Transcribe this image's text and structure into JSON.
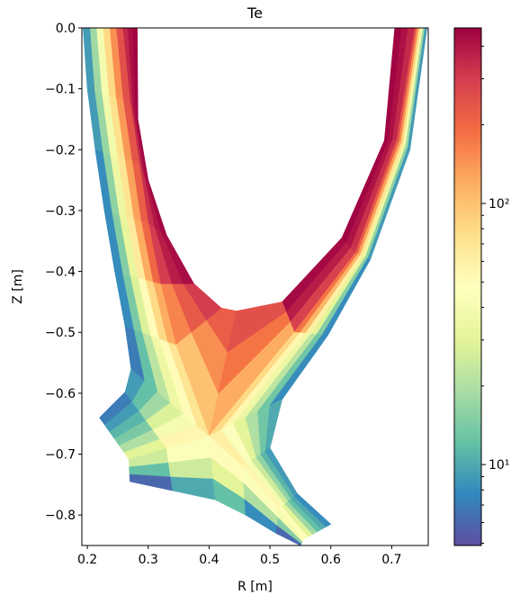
{
  "chart_data": {
    "type": "mesh",
    "title": "Te",
    "xlabel": "R [m]",
    "ylabel": "Z [m]",
    "xlim": [
      0.191,
      0.76
    ],
    "ylim": [
      -0.85,
      0.0
    ],
    "xticks": [
      0.2,
      0.3,
      0.4,
      0.5,
      0.6,
      0.7
    ],
    "yticks": [
      {
        "value": 0.0,
        "label": "0.0"
      },
      {
        "value": -0.1,
        "label": "−0.1"
      },
      {
        "value": -0.2,
        "label": "−0.2"
      },
      {
        "value": -0.3,
        "label": "−0.3"
      },
      {
        "value": -0.4,
        "label": "−0.4"
      },
      {
        "value": -0.5,
        "label": "−0.5"
      },
      {
        "value": -0.6,
        "label": "−0.6"
      },
      {
        "value": -0.7,
        "label": "−0.7"
      },
      {
        "value": -0.8,
        "label": "−0.8"
      }
    ],
    "colorbar": {
      "lim": [
        4.9,
        470
      ],
      "log": true,
      "ticks": [
        {
          "value": 10,
          "label": "10¹"
        },
        {
          "value": 100,
          "label": "10²"
        }
      ],
      "minor_ticks": [
        5,
        6,
        7,
        8,
        9,
        20,
        30,
        40,
        50,
        60,
        70,
        80,
        90,
        200,
        300,
        400
      ],
      "colors": [
        "#5e4fa2",
        "#3288bd",
        "#66c2a5",
        "#abdda4",
        "#e6f598",
        "#ffffbf",
        "#fee08b",
        "#fdae61",
        "#f46d43",
        "#d53e4f",
        "#9e0142"
      ]
    },
    "blocks": [
      {
        "inner": [
          [
            0.27,
            -0.745
          ],
          [
            0.34,
            -0.76
          ],
          [
            0.41,
            -0.775
          ]
        ],
        "separatrix": [
          [
            0.268,
            -0.708
          ],
          [
            0.33,
            -0.69
          ],
          [
            0.4,
            -0.67
          ]
        ],
        "wall": [
          [
            0.22,
            -0.64
          ],
          [
            0.262,
            -0.598
          ],
          [
            0.272,
            -0.56
          ]
        ],
        "values": [
          [
            6,
            12,
            25,
            30,
            20,
            14,
            11,
            9,
            7
          ],
          [
            10,
            25,
            45,
            55,
            40,
            28,
            18,
            12,
            9
          ]
        ]
      },
      {
        "inner": [
          [
            0.445,
            -0.465
          ],
          [
            0.42,
            -0.46
          ],
          [
            0.375,
            -0.42
          ],
          [
            0.33,
            -0.34
          ],
          [
            0.3,
            -0.25
          ],
          [
            0.283,
            -0.15
          ],
          [
            0.282,
            0.0
          ]
        ],
        "separatrix": [
          [
            0.4,
            -0.67
          ],
          [
            0.345,
            -0.52
          ],
          [
            0.32,
            -0.42
          ],
          [
            0.3,
            -0.32
          ],
          [
            0.285,
            -0.22
          ],
          [
            0.27,
            -0.12
          ],
          [
            0.258,
            0.0
          ]
        ],
        "wall": [
          [
            0.272,
            -0.56
          ],
          [
            0.262,
            -0.49
          ],
          [
            0.245,
            -0.4
          ],
          [
            0.228,
            -0.3
          ],
          [
            0.213,
            -0.2
          ],
          [
            0.2,
            -0.1
          ],
          [
            0.193,
            0.0
          ]
        ],
        "values": [
          [
            220,
            150,
            100,
            70,
            50,
            35,
            22,
            12,
            7
          ],
          [
            300,
            230,
            160,
            120,
            80,
            50,
            28,
            14,
            8
          ],
          [
            430,
            380,
            300,
            200,
            120,
            65,
            32,
            15,
            8
          ],
          [
            450,
            400,
            330,
            220,
            130,
            70,
            35,
            16,
            8
          ],
          [
            460,
            420,
            340,
            240,
            140,
            75,
            38,
            17,
            9
          ],
          [
            460,
            420,
            350,
            250,
            150,
            80,
            40,
            18,
            9
          ]
        ]
      },
      {
        "inner": [
          [
            0.705,
            0.0
          ],
          [
            0.688,
            -0.185
          ],
          [
            0.618,
            -0.345
          ],
          [
            0.52,
            -0.45
          ],
          [
            0.445,
            -0.465
          ]
        ],
        "separatrix": [
          [
            0.738,
            0.0
          ],
          [
            0.708,
            -0.185
          ],
          [
            0.64,
            -0.37
          ],
          [
            0.54,
            -0.5
          ],
          [
            0.4,
            -0.67
          ]
        ],
        "wall": [
          [
            0.758,
            0.0
          ],
          [
            0.73,
            -0.2
          ],
          [
            0.665,
            -0.38
          ],
          [
            0.595,
            -0.505
          ],
          [
            0.52,
            -0.61
          ]
        ],
        "values": [
          [
            460,
            420,
            350,
            250,
            150,
            80,
            40,
            18,
            9
          ],
          [
            460,
            410,
            330,
            220,
            130,
            70,
            35,
            16,
            9
          ],
          [
            440,
            380,
            290,
            180,
            110,
            60,
            30,
            15,
            8
          ],
          [
            250,
            180,
            120,
            80,
            55,
            35,
            22,
            13,
            8
          ]
        ]
      },
      {
        "inner": [
          [
            0.41,
            -0.775
          ],
          [
            0.46,
            -0.8
          ],
          [
            0.51,
            -0.83
          ],
          [
            0.55,
            -0.85
          ]
        ],
        "separatrix": [
          [
            0.4,
            -0.67
          ],
          [
            0.455,
            -0.72
          ],
          [
            0.515,
            -0.79
          ],
          [
            0.555,
            -0.84
          ]
        ],
        "wall": [
          [
            0.52,
            -0.61
          ],
          [
            0.5,
            -0.69
          ],
          [
            0.545,
            -0.765
          ],
          [
            0.6,
            -0.815
          ]
        ],
        "values": [
          [
            12,
            30,
            50,
            60,
            45,
            30,
            20,
            13,
            10
          ],
          [
            8,
            20,
            45,
            55,
            40,
            25,
            16,
            11,
            9
          ],
          [
            6,
            15,
            40,
            50,
            30,
            18,
            12,
            10,
            8
          ]
        ]
      }
    ]
  }
}
